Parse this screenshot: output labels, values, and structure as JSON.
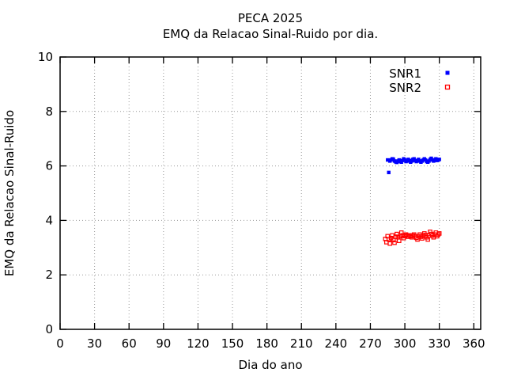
{
  "figure": {
    "background": "#ffffff",
    "border_color": "#000000",
    "grid_color": "#9a9a9a"
  },
  "chart_data": {
    "type": "scatter",
    "title": "PECA 2025",
    "subtitle": "EMQ da Relacao Sinal-Ruido por dia.",
    "xlabel": "Dia do ano",
    "ylabel": "EMQ da Relacao Sinal-Ruido",
    "xlim": [
      0,
      366
    ],
    "ylim": [
      0,
      10
    ],
    "xticks": [
      0,
      30,
      60,
      90,
      120,
      150,
      180,
      210,
      240,
      270,
      300,
      330,
      360
    ],
    "yticks": [
      0,
      2,
      4,
      6,
      8,
      10
    ],
    "grid": true,
    "legend_position": "top-right",
    "series": [
      {
        "name": "SNR1",
        "color": "#0000ff",
        "marker": "filled-square",
        "x": [
          285,
          286,
          287,
          288,
          289,
          290,
          291,
          292,
          293,
          294,
          295,
          296,
          297,
          298,
          299,
          300,
          301,
          302,
          303,
          304,
          305,
          306,
          307,
          308,
          309,
          310,
          311,
          312,
          313,
          314,
          315,
          316,
          317,
          318,
          319,
          320,
          321,
          322,
          323,
          324,
          325,
          326,
          327,
          328,
          329,
          330
        ],
        "y": [
          6.22,
          5.76,
          6.18,
          6.22,
          6.26,
          6.25,
          6.18,
          6.15,
          6.13,
          6.18,
          6.22,
          6.16,
          6.14,
          6.2,
          6.26,
          6.22,
          6.16,
          6.18,
          6.24,
          6.2,
          6.14,
          6.18,
          6.24,
          6.26,
          6.2,
          6.16,
          6.2,
          6.24,
          6.18,
          6.14,
          6.18,
          6.22,
          6.26,
          6.22,
          6.16,
          6.14,
          6.18,
          6.24,
          6.28,
          6.22,
          6.18,
          6.22,
          6.26,
          6.2,
          6.22,
          6.24
        ]
      },
      {
        "name": "SNR2",
        "color": "#ff0000",
        "marker": "open-square",
        "x": [
          283,
          284,
          285,
          286,
          287,
          288,
          289,
          290,
          291,
          292,
          293,
          294,
          295,
          296,
          297,
          298,
          299,
          300,
          301,
          302,
          303,
          304,
          305,
          306,
          307,
          308,
          309,
          310,
          311,
          312,
          313,
          314,
          315,
          316,
          317,
          318,
          319,
          320,
          321,
          322,
          323,
          324,
          325,
          326,
          327,
          328,
          329,
          330
        ],
        "y": [
          3.32,
          3.2,
          3.42,
          3.3,
          3.15,
          3.35,
          3.45,
          3.28,
          3.18,
          3.4,
          3.5,
          3.38,
          3.25,
          3.42,
          3.55,
          3.45,
          3.35,
          3.42,
          3.48,
          3.45,
          3.4,
          3.45,
          3.42,
          3.38,
          3.44,
          3.48,
          3.42,
          3.36,
          3.3,
          3.42,
          3.48,
          3.4,
          3.34,
          3.44,
          3.52,
          3.46,
          3.38,
          3.3,
          3.44,
          3.58,
          3.5,
          3.44,
          3.38,
          3.48,
          3.55,
          3.42,
          3.48,
          3.52
        ]
      }
    ]
  }
}
